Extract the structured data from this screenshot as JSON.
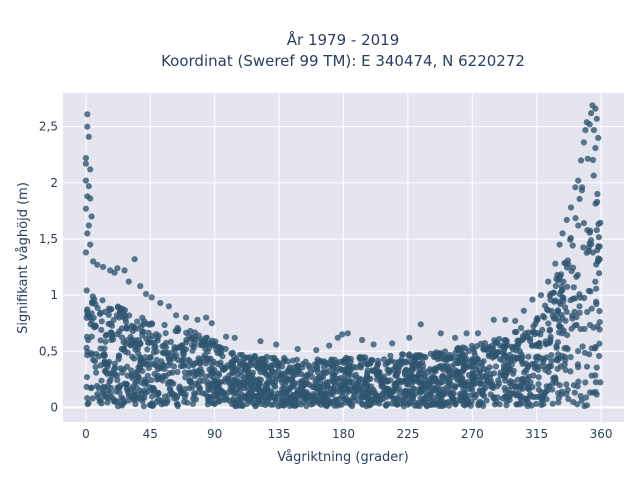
{
  "chart_data": {
    "type": "scatter",
    "title": [
      "År 1979 - 2019",
      "Koordinat (Sweref 99 TM): E 340474, N 6220272"
    ],
    "xlabel": "Vågriktning (grader)",
    "ylabel": "Signifikant våghöjd (m)",
    "xlim": [
      -16,
      376
    ],
    "ylim": [
      -0.13,
      2.8
    ],
    "xticks": [
      0,
      45,
      90,
      135,
      180,
      225,
      270,
      315,
      360
    ],
    "xtick_labels": [
      "0",
      "45",
      "90",
      "135",
      "180",
      "225",
      "270",
      "315",
      "360"
    ],
    "yticks": [
      0,
      0.5,
      1,
      1.5,
      2,
      2.5
    ],
    "ytick_labels": [
      "0",
      "0,5",
      "1",
      "1,5",
      "2",
      "2,5"
    ],
    "grid": true,
    "colors": {
      "marker": "#2e5570",
      "plot_bg": "#e5e5f0",
      "grid": "#ffffff",
      "text": "#2a3f5f"
    },
    "envelope_upper": [
      {
        "x": 0,
        "y": 1.15
      },
      {
        "x": 10,
        "y": 1.0
      },
      {
        "x": 20,
        "y": 0.92
      },
      {
        "x": 30,
        "y": 0.85
      },
      {
        "x": 45,
        "y": 0.78
      },
      {
        "x": 60,
        "y": 0.72
      },
      {
        "x": 75,
        "y": 0.68
      },
      {
        "x": 90,
        "y": 0.6
      },
      {
        "x": 100,
        "y": 0.5
      },
      {
        "x": 120,
        "y": 0.46
      },
      {
        "x": 150,
        "y": 0.43
      },
      {
        "x": 180,
        "y": 0.44
      },
      {
        "x": 210,
        "y": 0.46
      },
      {
        "x": 240,
        "y": 0.5
      },
      {
        "x": 270,
        "y": 0.55
      },
      {
        "x": 290,
        "y": 0.62
      },
      {
        "x": 310,
        "y": 0.75
      },
      {
        "x": 320,
        "y": 0.9
      },
      {
        "x": 330,
        "y": 1.2
      },
      {
        "x": 340,
        "y": 1.6
      },
      {
        "x": 345,
        "y": 1.9
      },
      {
        "x": 350,
        "y": 2.2
      },
      {
        "x": 355,
        "y": 2.3
      },
      {
        "x": 359,
        "y": 1.8
      }
    ],
    "outliers": [
      {
        "x": 1,
        "y": 2.61
      },
      {
        "x": 1,
        "y": 2.5
      },
      {
        "x": 2,
        "y": 2.41
      },
      {
        "x": 0,
        "y": 2.22
      },
      {
        "x": 0,
        "y": 2.17
      },
      {
        "x": 3,
        "y": 2.12
      },
      {
        "x": 0,
        "y": 2.02
      },
      {
        "x": 2,
        "y": 1.97
      },
      {
        "x": 1,
        "y": 1.88
      },
      {
        "x": 3,
        "y": 1.86
      },
      {
        "x": 0,
        "y": 1.77
      },
      {
        "x": 4,
        "y": 1.7
      },
      {
        "x": 2,
        "y": 1.62
      },
      {
        "x": 1,
        "y": 1.55
      },
      {
        "x": 3,
        "y": 1.45
      },
      {
        "x": 0,
        "y": 1.38
      },
      {
        "x": 5,
        "y": 1.3
      },
      {
        "x": 8,
        "y": 1.27
      },
      {
        "x": 12,
        "y": 1.25
      },
      {
        "x": 17,
        "y": 1.22
      },
      {
        "x": 22,
        "y": 1.24
      },
      {
        "x": 27,
        "y": 1.22
      },
      {
        "x": 34,
        "y": 1.32
      },
      {
        "x": 20,
        "y": 1.2
      },
      {
        "x": 38,
        "y": 1.08
      },
      {
        "x": 42,
        "y": 1.01
      },
      {
        "x": 30,
        "y": 1.12
      },
      {
        "x": 46,
        "y": 0.98
      },
      {
        "x": 52,
        "y": 0.93
      },
      {
        "x": 58,
        "y": 0.9
      },
      {
        "x": 63,
        "y": 0.82
      },
      {
        "x": 70,
        "y": 0.8
      },
      {
        "x": 78,
        "y": 0.78
      },
      {
        "x": 84,
        "y": 0.8
      },
      {
        "x": 88,
        "y": 0.75
      },
      {
        "x": 98,
        "y": 0.63
      },
      {
        "x": 104,
        "y": 0.62
      },
      {
        "x": 122,
        "y": 0.59
      },
      {
        "x": 133,
        "y": 0.56
      },
      {
        "x": 148,
        "y": 0.52
      },
      {
        "x": 161,
        "y": 0.51
      },
      {
        "x": 170,
        "y": 0.55
      },
      {
        "x": 176,
        "y": 0.62
      },
      {
        "x": 183,
        "y": 0.66
      },
      {
        "x": 179,
        "y": 0.65
      },
      {
        "x": 193,
        "y": 0.6
      },
      {
        "x": 201,
        "y": 0.56
      },
      {
        "x": 214,
        "y": 0.57
      },
      {
        "x": 226,
        "y": 0.62
      },
      {
        "x": 234,
        "y": 0.74
      },
      {
        "x": 248,
        "y": 0.66
      },
      {
        "x": 258,
        "y": 0.62
      },
      {
        "x": 266,
        "y": 0.66
      },
      {
        "x": 274,
        "y": 0.66
      },
      {
        "x": 285,
        "y": 0.78
      },
      {
        "x": 293,
        "y": 0.78
      },
      {
        "x": 300,
        "y": 0.77
      },
      {
        "x": 306,
        "y": 0.86
      },
      {
        "x": 312,
        "y": 0.96
      },
      {
        "x": 318,
        "y": 1.0
      },
      {
        "x": 323,
        "y": 1.12
      },
      {
        "x": 328,
        "y": 1.28
      },
      {
        "x": 331,
        "y": 1.45
      },
      {
        "x": 333,
        "y": 1.55
      },
      {
        "x": 336,
        "y": 1.67
      },
      {
        "x": 339,
        "y": 1.78
      },
      {
        "x": 342,
        "y": 1.96
      },
      {
        "x": 344,
        "y": 2.02
      },
      {
        "x": 346,
        "y": 2.2
      },
      {
        "x": 348,
        "y": 2.36
      },
      {
        "x": 349,
        "y": 2.47
      },
      {
        "x": 350,
        "y": 2.54
      },
      {
        "x": 352,
        "y": 2.52
      },
      {
        "x": 353,
        "y": 2.62
      },
      {
        "x": 354,
        "y": 2.69
      },
      {
        "x": 356,
        "y": 2.66
      },
      {
        "x": 357,
        "y": 2.57
      },
      {
        "x": 355,
        "y": 2.47
      },
      {
        "x": 358,
        "y": 2.4
      },
      {
        "x": 356,
        "y": 2.31
      }
    ]
  }
}
